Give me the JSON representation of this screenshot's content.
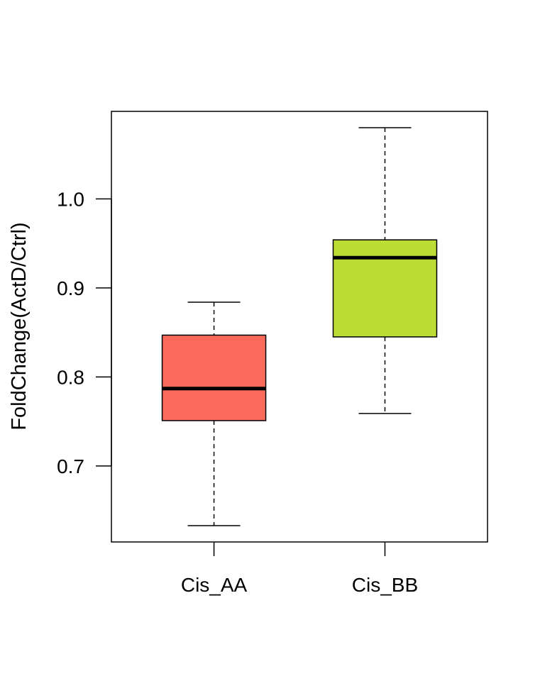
{
  "chart_data": {
    "type": "boxplot",
    "title": "",
    "xlabel": "",
    "ylabel": "FoldChange(ActD/Ctrl)",
    "categories": [
      "Cis_AA",
      "Cis_BB"
    ],
    "boxes": [
      {
        "category": "Cis_AA",
        "whisker_low": 0.633,
        "q1": 0.751,
        "median": 0.787,
        "q3": 0.847,
        "whisker_high": 0.884,
        "color": "#F96A5B"
      },
      {
        "category": "Cis_BB",
        "whisker_low": 0.759,
        "q1": 0.845,
        "median": 0.934,
        "q3": 0.954,
        "whisker_high": 1.08,
        "color": "#BCDD35"
      }
    ],
    "yticks": [
      0.7,
      0.8,
      0.9,
      1.0
    ],
    "ytick_labels": [
      "0.7",
      "0.8",
      "0.9",
      "1.0"
    ],
    "ylim": [
      0.6147,
      1.0983
    ],
    "grid": false,
    "legend": "none"
  }
}
